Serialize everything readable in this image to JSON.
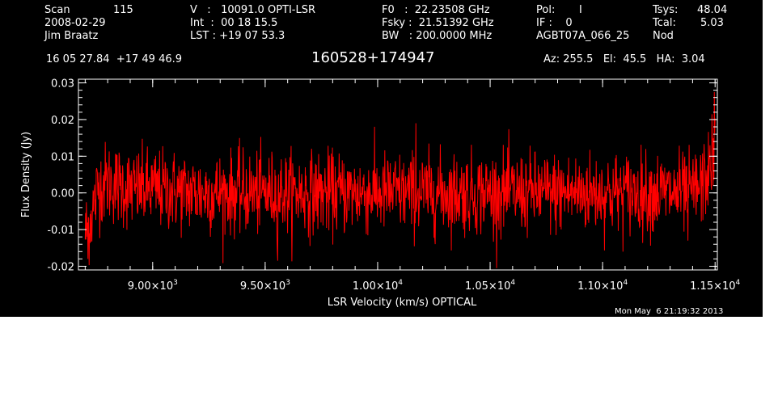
{
  "header": {
    "row1": {
      "scan_label": "Scan",
      "scan_value": "115",
      "v": "V   :   10091.0 OPTI-LSR",
      "f0": "F0   :  22.23508 GHz",
      "pol_label": "Pol:",
      "pol_value": "I",
      "tsys_label": "Tsys:",
      "tsys_value": "48.04"
    },
    "row2": {
      "date": "2008-02-29",
      "int": "Int  :  00 18 15.5",
      "fsky": "Fsky :  21.51392 GHz",
      "if": "IF :    0",
      "tcal_label": "Tcal:",
      "tcal_value": "5.03"
    },
    "row3": {
      "observer": "Jim Braatz",
      "lst": "LST : +19 07 53.3",
      "bw": "BW   : 200.0000 MHz",
      "project": "AGBT07A_066_25",
      "mode": "Nod"
    },
    "coords": "16 05 27.84  +17 49 46.9",
    "source": "160528+174947",
    "azelha": "Az: 255.5   El:  45.5   HA:  3.04"
  },
  "footer_timestamp": "Mon May  6 21:19:32 2013",
  "chart_data": {
    "type": "line",
    "xlabel": "LSR Velocity (km/s) OPTICAL",
    "ylabel": "Flux Density (Jy)",
    "xlim": [
      8670,
      11510
    ],
    "ylim": [
      -0.021,
      0.031
    ],
    "x_ticks": [
      {
        "value": 9000,
        "mantissa": "9.00",
        "exponent": "3"
      },
      {
        "value": 9500,
        "mantissa": "9.50",
        "exponent": "3"
      },
      {
        "value": 10000,
        "mantissa": "1.00",
        "exponent": "4"
      },
      {
        "value": 10500,
        "mantissa": "1.05",
        "exponent": "4"
      },
      {
        "value": 11000,
        "mantissa": "1.10",
        "exponent": "4"
      },
      {
        "value": 11500,
        "mantissa": "1.15",
        "exponent": "4"
      }
    ],
    "y_ticks": [
      {
        "value": -0.02,
        "label": "-0.02"
      },
      {
        "value": -0.01,
        "label": "-0.01"
      },
      {
        "value": 0.0,
        "label": "0.00"
      },
      {
        "value": 0.01,
        "label": "0.01"
      },
      {
        "value": 0.02,
        "label": "0.02"
      },
      {
        "value": 0.03,
        "label": "0.03"
      }
    ],
    "series": [
      {
        "color": "#ff0000",
        "noise_rms": 0.0055,
        "x": [
          8700,
          8720,
          8740,
          8760,
          8800,
          8850,
          8900,
          9000,
          9200,
          9400,
          9600,
          9800,
          10000,
          10200,
          10400,
          10600,
          10800,
          11000,
          11200,
          11300,
          11380,
          11420,
          11450,
          11470,
          11490,
          11500
        ],
        "y": [
          -0.011,
          -0.008,
          -0.003,
          0.002,
          0.003,
          0.002,
          0.001,
          0.001,
          0.0,
          0.0,
          0.0,
          0.0,
          0.0,
          0.0,
          0.0,
          0.0,
          0.0,
          0.0,
          0.0,
          0.0,
          0.0,
          0.001,
          0.003,
          0.006,
          0.01,
          0.013
        ]
      }
    ],
    "spikes": [
      {
        "x": 8712,
        "y": -0.018
      },
      {
        "x": 9555,
        "y": -0.0185
      },
      {
        "x": 10170,
        "y": 0.019
      },
      {
        "x": 11380,
        "y": -0.013
      },
      {
        "x": 11497,
        "y": 0.0275
      }
    ]
  }
}
